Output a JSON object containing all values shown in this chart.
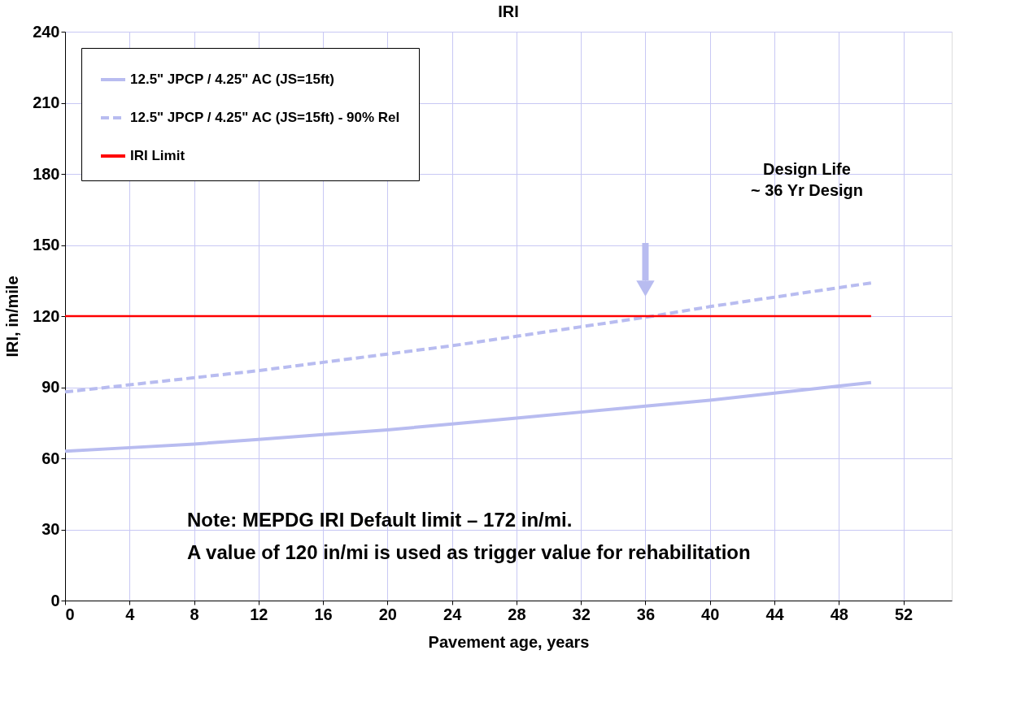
{
  "chart_data": {
    "type": "line",
    "title": "IRI",
    "xlabel": "Pavement age, years",
    "ylabel": "IRI, in/mile",
    "x": [
      0,
      4,
      8,
      12,
      16,
      20,
      24,
      28,
      32,
      36,
      40,
      44,
      48,
      50
    ],
    "series": [
      {
        "name": "12.5\" JPCP / 4.25\" AC (JS=15ft)",
        "color": "#b8bcf0",
        "line_style": "solid",
        "values": [
          63,
          64.5,
          66,
          68,
          70,
          72,
          74.5,
          77,
          79.5,
          82,
          84.5,
          87.5,
          90.5,
          92
        ]
      },
      {
        "name": "12.5\" JPCP / 4.25\" AC (JS=15ft) - 90% Rel",
        "color": "#b8bcf0",
        "line_style": "dashed",
        "values": [
          88,
          91,
          94,
          97,
          100.5,
          104,
          107.5,
          111.5,
          115.5,
          119.5,
          124,
          128,
          132,
          134
        ]
      }
    ],
    "ref_lines": [
      {
        "axis": "y",
        "value": 120,
        "label": "IRI Limit",
        "color": "#ff0000",
        "line_style": "solid"
      }
    ],
    "annotations": [
      "Design Life\n~ 36 Yr Design",
      "Note: MEPDG IRI Default limit – 172 in/mi.",
      "A value of 120 in/mi is used as trigger value for rehabilitation"
    ],
    "xlim": [
      0,
      55
    ],
    "xticks": [
      0,
      4,
      8,
      12,
      16,
      20,
      24,
      28,
      32,
      36,
      40,
      44,
      48,
      52
    ],
    "ylim": [
      0,
      240
    ],
    "yticks": [
      0,
      30,
      60,
      90,
      120,
      150,
      180,
      210,
      240
    ],
    "grid": true,
    "legend": "top left",
    "marker": "none"
  }
}
